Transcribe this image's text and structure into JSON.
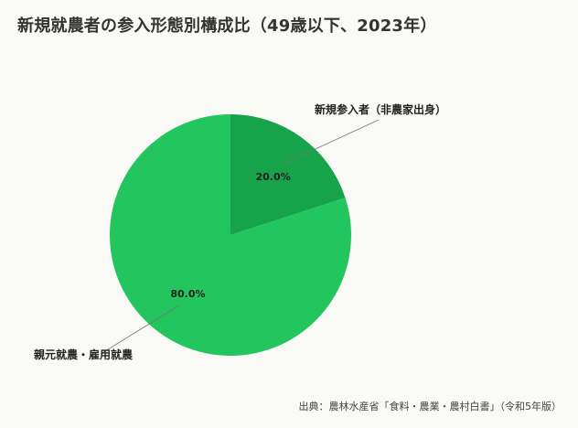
{
  "chart_data": {
    "type": "pie",
    "title": "新規就農者の参入形態別構成比（49歳以下、2023年）",
    "slices": [
      {
        "label": "新規参入者（非農家出身）",
        "value": 20.0,
        "value_label": "20.0%",
        "color": "#16a34a"
      },
      {
        "label": "親元就農・雇用就農",
        "value": 80.0,
        "value_label": "80.0%",
        "color": "#22c55e"
      }
    ],
    "legend": "none",
    "start_angle": "12 o'clock",
    "direction": "clockwise"
  },
  "source": "出典：農林水産省「食料・農業・農村白書」（令和5年版）",
  "colors": {
    "background": "#f9f9f6",
    "title_text": "#333333",
    "label_text": "#222222",
    "leader_line": "#777777"
  }
}
